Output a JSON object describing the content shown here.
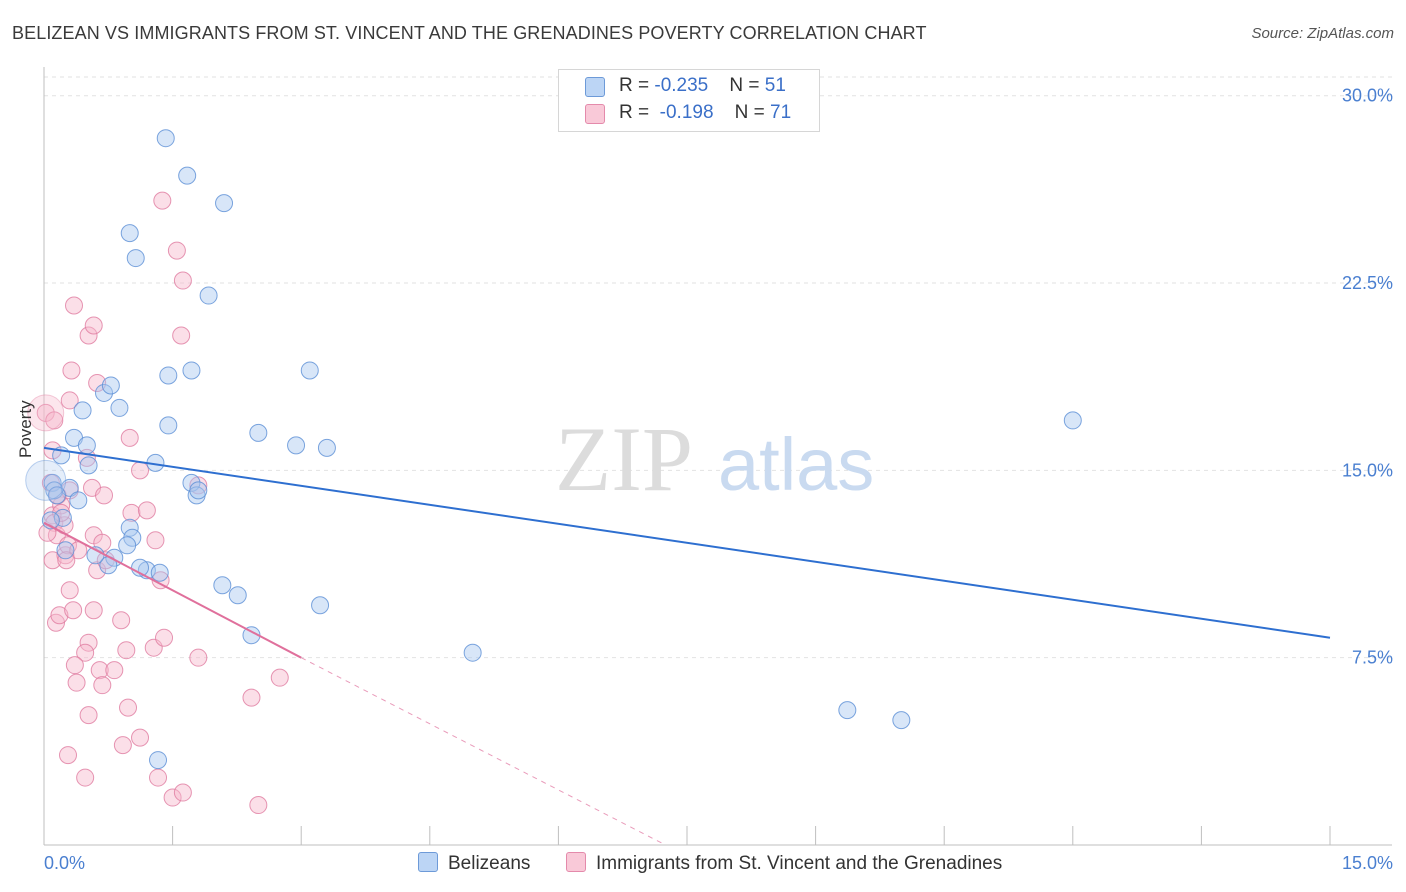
{
  "title": "BELIZEAN VS IMMIGRANTS FROM ST. VINCENT AND THE GRENADINES POVERTY CORRELATION CHART",
  "source": "Source: ZipAtlas.com",
  "watermark": {
    "zip": "ZIP",
    "atlas": "atlas"
  },
  "legend": {
    "rows": [
      {
        "r_label": "R = ",
        "r_value": "-0.235",
        "n_label": "N = ",
        "n_value": "51"
      },
      {
        "r_label": "R = ",
        "r_value": " -0.198",
        "n_label": "N = ",
        "n_value": "71"
      }
    ]
  },
  "bottom_legend": {
    "series1": "Belizeans",
    "series2": "Immigrants from St. Vincent and the Grenadines"
  },
  "colors": {
    "blue_fill": "#a8c8f0",
    "blue_stroke": "#5b8fd6",
    "blue_line": "#2e6fd0",
    "pink_fill": "#f6b8cc",
    "pink_stroke": "#e07ca0",
    "pink_line": "#e0709c",
    "axis_text": "#4a7fd0",
    "grid": "#e2e2e2"
  },
  "chart_data": {
    "type": "scatter",
    "title": "BELIZEAN VS IMMIGRANTS FROM ST. VINCENT AND THE GRENADINES POVERTY CORRELATION CHART",
    "xlabel": "",
    "ylabel": "Poverty",
    "xlim": [
      0,
      15
    ],
    "ylim": [
      0,
      30
    ],
    "x_tick_labels": [
      "0.0%",
      "15.0%"
    ],
    "y_ticks": [
      7.5,
      15.0,
      22.5,
      30.0
    ],
    "y_tick_labels": [
      "7.5%",
      "15.0%",
      "22.5%",
      "30.0%"
    ],
    "grid": true,
    "legend_position": "top-center",
    "series": [
      {
        "name": "Belizeans",
        "points": [
          [
            0.1,
            14.5
          ],
          [
            0.12,
            14.2
          ],
          [
            0.2,
            15.6
          ],
          [
            0.22,
            13.1
          ],
          [
            0.3,
            14.3
          ],
          [
            0.4,
            13.8
          ],
          [
            0.35,
            16.3
          ],
          [
            0.5,
            16.0
          ],
          [
            0.52,
            15.2
          ],
          [
            0.45,
            17.4
          ],
          [
            0.7,
            18.1
          ],
          [
            0.78,
            18.4
          ],
          [
            0.88,
            17.5
          ],
          [
            0.82,
            11.5
          ],
          [
            0.75,
            11.2
          ],
          [
            1.0,
            12.7
          ],
          [
            1.03,
            12.3
          ],
          [
            0.97,
            12.0
          ],
          [
            1.2,
            11.0
          ],
          [
            1.35,
            10.9
          ],
          [
            1.0,
            24.5
          ],
          [
            1.07,
            23.5
          ],
          [
            1.3,
            15.3
          ],
          [
            1.45,
            16.8
          ],
          [
            1.42,
            28.3
          ],
          [
            1.67,
            26.8
          ],
          [
            2.1,
            25.7
          ],
          [
            1.92,
            22.0
          ],
          [
            1.45,
            18.8
          ],
          [
            1.72,
            19.0
          ],
          [
            1.72,
            14.5
          ],
          [
            1.78,
            14.0
          ],
          [
            2.08,
            10.4
          ],
          [
            2.26,
            10.0
          ],
          [
            2.42,
            8.4
          ],
          [
            1.33,
            3.4
          ],
          [
            2.5,
            16.5
          ],
          [
            2.94,
            16.0
          ],
          [
            3.1,
            19.0
          ],
          [
            3.3,
            15.9
          ],
          [
            3.22,
            9.6
          ],
          [
            5.0,
            7.7
          ],
          [
            12.0,
            17.0
          ],
          [
            9.37,
            5.4
          ],
          [
            10.0,
            5.0
          ],
          [
            0.15,
            14.0
          ],
          [
            0.08,
            13.0
          ],
          [
            0.25,
            11.8
          ],
          [
            0.6,
            11.6
          ],
          [
            1.12,
            11.1
          ],
          [
            1.8,
            14.2
          ]
        ]
      },
      {
        "name": "Immigrants from St. Vincent and the Grenadines",
        "points": [
          [
            0.02,
            17.3
          ],
          [
            0.08,
            14.5
          ],
          [
            0.1,
            13.2
          ],
          [
            0.12,
            12.9
          ],
          [
            0.15,
            12.4
          ],
          [
            0.1,
            11.4
          ],
          [
            0.14,
            8.9
          ],
          [
            0.18,
            9.2
          ],
          [
            0.25,
            11.6
          ],
          [
            0.3,
            10.2
          ],
          [
            0.34,
            9.4
          ],
          [
            0.28,
            12.0
          ],
          [
            0.4,
            11.8
          ],
          [
            0.2,
            13.6
          ],
          [
            0.24,
            12.8
          ],
          [
            0.16,
            14.0
          ],
          [
            0.3,
            14.2
          ],
          [
            0.3,
            17.8
          ],
          [
            0.32,
            19.0
          ],
          [
            0.35,
            21.6
          ],
          [
            0.52,
            20.4
          ],
          [
            0.58,
            20.8
          ],
          [
            0.62,
            18.5
          ],
          [
            0.5,
            15.5
          ],
          [
            0.56,
            14.3
          ],
          [
            0.58,
            12.4
          ],
          [
            0.62,
            11.0
          ],
          [
            0.58,
            9.4
          ],
          [
            0.52,
            8.1
          ],
          [
            0.48,
            7.7
          ],
          [
            0.36,
            7.2
          ],
          [
            0.38,
            6.5
          ],
          [
            0.52,
            5.2
          ],
          [
            0.28,
            3.6
          ],
          [
            0.48,
            2.7
          ],
          [
            0.68,
            12.1
          ],
          [
            0.72,
            11.4
          ],
          [
            0.65,
            7.0
          ],
          [
            0.68,
            6.4
          ],
          [
            0.82,
            7.0
          ],
          [
            0.9,
            9.0
          ],
          [
            0.96,
            7.8
          ],
          [
            0.98,
            5.5
          ],
          [
            0.92,
            4.0
          ],
          [
            1.12,
            4.3
          ],
          [
            1.0,
            16.3
          ],
          [
            1.12,
            15.0
          ],
          [
            1.02,
            13.3
          ],
          [
            1.2,
            13.4
          ],
          [
            1.3,
            12.2
          ],
          [
            1.28,
            7.9
          ],
          [
            1.4,
            8.3
          ],
          [
            1.33,
            2.7
          ],
          [
            1.5,
            1.9
          ],
          [
            1.62,
            2.1
          ],
          [
            1.36,
            10.6
          ],
          [
            1.38,
            25.8
          ],
          [
            1.55,
            23.8
          ],
          [
            1.62,
            22.6
          ],
          [
            1.6,
            20.4
          ],
          [
            1.8,
            14.4
          ],
          [
            1.8,
            7.5
          ],
          [
            2.42,
            5.9
          ],
          [
            2.5,
            1.6
          ],
          [
            2.75,
            6.7
          ],
          [
            0.12,
            17.0
          ],
          [
            0.1,
            15.8
          ],
          [
            0.2,
            13.3
          ],
          [
            0.26,
            11.4
          ],
          [
            0.04,
            12.5
          ],
          [
            0.7,
            14.0
          ]
        ]
      }
    ],
    "trend_lines": [
      {
        "series": "Belizeans",
        "x": [
          0.0,
          15.0
        ],
        "y": [
          15.9,
          8.3
        ]
      },
      {
        "series": "Immigrants from St. Vincent and the Grenadines",
        "x": [
          0.0,
          3.0
        ],
        "y": [
          12.9,
          7.5
        ],
        "dashed_extension_to": [
          7.25,
          0.0
        ]
      }
    ]
  }
}
